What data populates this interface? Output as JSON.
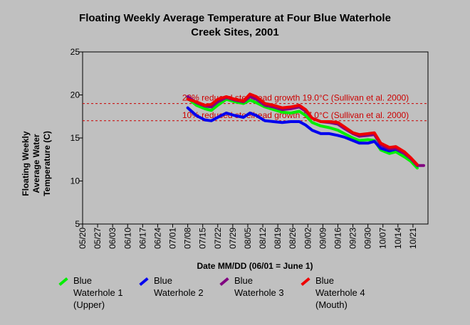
{
  "chart_data": {
    "type": "line",
    "title": "Floating Weekly Average Temperature at Four Blue Waterhole Creek Sites, 2001",
    "title_lines": [
      "Floating Weekly Average Temperature at Four Blue Waterhole",
      "Creek Sites, 2001"
    ],
    "xlabel": "Date MM/DD (06/01 = June 1)",
    "ylabel": "Floating Weekly Average Water Temperature (C)",
    "ylabel_lines": [
      "Floating Weekly",
      "Average Water",
      "Temperature (C)"
    ],
    "x_ticks": [
      "05/20",
      "05/27",
      "06/03",
      "06/10",
      "06/17",
      "06/24",
      "07/01",
      "07/08",
      "07/15",
      "07/22",
      "07/29",
      "08/05",
      "08/12",
      "08/19",
      "08/26",
      "09/02",
      "09/09",
      "09/16",
      "09/23",
      "09/30",
      "10/07",
      "10/14",
      "10/21"
    ],
    "xlim": [
      "05/20",
      "10/28"
    ],
    "y_ticks": [
      5,
      10,
      15,
      20,
      25
    ],
    "ylim": [
      5,
      25
    ],
    "grid": false,
    "thresholds": [
      {
        "label": "20% reduced steelhead growth 19.0°C (Sullivan et al. 2000)",
        "value": 19.0,
        "color": "#cc0000"
      },
      {
        "label": "10% reduced steelhead growth 17.0°C (Sullivan et al. 2000)",
        "value": 17.0,
        "color": "#cc0000"
      }
    ],
    "series": [
      {
        "name": "Blue Waterhole 1 (Upper)",
        "color": "#00ee00",
        "points": [
          [
            "07/08",
            19.6
          ],
          [
            "07/12",
            18.8
          ],
          [
            "07/16",
            18.4
          ],
          [
            "07/19",
            18.2
          ],
          [
            "07/22",
            18.8
          ],
          [
            "07/26",
            19.5
          ],
          [
            "07/30",
            19.2
          ],
          [
            "08/03",
            19.0
          ],
          [
            "08/06",
            19.4
          ],
          [
            "08/09",
            19.1
          ],
          [
            "08/13",
            18.6
          ],
          [
            "08/17",
            18.3
          ],
          [
            "08/21",
            18.0
          ],
          [
            "08/25",
            17.9
          ],
          [
            "08/29",
            18.1
          ],
          [
            "09/01",
            17.6
          ],
          [
            "09/04",
            16.8
          ],
          [
            "09/08",
            16.4
          ],
          [
            "09/12",
            16.2
          ],
          [
            "09/16",
            15.9
          ],
          [
            "09/19",
            15.5
          ],
          [
            "09/23",
            15.0
          ],
          [
            "09/26",
            14.7
          ],
          [
            "09/30",
            14.8
          ],
          [
            "10/03",
            14.7
          ],
          [
            "10/06",
            13.6
          ],
          [
            "10/10",
            13.2
          ],
          [
            "10/13",
            13.4
          ],
          [
            "10/17",
            12.8
          ],
          [
            "10/20",
            12.3
          ],
          [
            "10/23",
            11.5
          ]
        ]
      },
      {
        "name": "Blue Waterhole 2",
        "color": "#0000ee",
        "points": [
          [
            "07/08",
            18.5
          ],
          [
            "07/12",
            17.6
          ],
          [
            "07/16",
            17.1
          ],
          [
            "07/19",
            17.0
          ],
          [
            "07/22",
            17.4
          ],
          [
            "07/26",
            17.9
          ],
          [
            "07/30",
            17.6
          ],
          [
            "08/03",
            17.4
          ],
          [
            "08/06",
            17.9
          ],
          [
            "08/09",
            17.6
          ],
          [
            "08/13",
            17.0
          ],
          [
            "08/17",
            16.9
          ],
          [
            "08/21",
            16.8
          ],
          [
            "08/25",
            16.9
          ],
          [
            "08/29",
            16.9
          ],
          [
            "09/01",
            16.5
          ],
          [
            "09/04",
            15.9
          ],
          [
            "09/08",
            15.5
          ],
          [
            "09/12",
            15.5
          ],
          [
            "09/16",
            15.3
          ],
          [
            "09/19",
            15.1
          ],
          [
            "09/23",
            14.7
          ],
          [
            "09/26",
            14.4
          ],
          [
            "09/30",
            14.4
          ],
          [
            "10/03",
            14.6
          ],
          [
            "10/06",
            13.8
          ],
          [
            "10/10",
            13.5
          ],
          [
            "10/13",
            13.7
          ],
          [
            "10/17",
            13.2
          ],
          [
            "10/20",
            12.6
          ],
          [
            "10/23",
            11.8
          ]
        ]
      },
      {
        "name": "Blue Waterhole 3",
        "color": "#800080",
        "points": [
          [
            "07/08",
            19.8
          ],
          [
            "07/12",
            19.1
          ],
          [
            "07/16",
            18.7
          ],
          [
            "07/19",
            18.6
          ],
          [
            "07/22",
            19.2
          ],
          [
            "07/26",
            19.7
          ],
          [
            "07/30",
            19.4
          ],
          [
            "08/03",
            19.2
          ],
          [
            "08/06",
            19.8
          ],
          [
            "08/09",
            19.5
          ],
          [
            "08/13",
            18.8
          ],
          [
            "08/17",
            18.6
          ],
          [
            "08/21",
            18.3
          ],
          [
            "08/25",
            18.4
          ],
          [
            "08/29",
            18.6
          ],
          [
            "09/01",
            18.1
          ],
          [
            "09/04",
            17.3
          ],
          [
            "09/08",
            16.9
          ],
          [
            "09/12",
            16.8
          ],
          [
            "09/16",
            16.6
          ],
          [
            "09/19",
            16.1
          ],
          [
            "09/23",
            15.5
          ],
          [
            "09/26",
            15.2
          ],
          [
            "09/30",
            15.3
          ],
          [
            "10/03",
            15.4
          ],
          [
            "10/06",
            14.2
          ],
          [
            "10/10",
            13.7
          ],
          [
            "10/13",
            13.8
          ],
          [
            "10/17",
            13.2
          ],
          [
            "10/20",
            12.6
          ],
          [
            "10/23",
            11.8
          ],
          [
            "10/26",
            11.8
          ]
        ]
      },
      {
        "name": "Blue Waterhole 4 (Mouth)",
        "color": "#ee0000",
        "points": [
          [
            "07/08",
            19.5
          ],
          [
            "07/12",
            19.2
          ],
          [
            "07/16",
            18.8
          ],
          [
            "07/19",
            18.9
          ],
          [
            "07/22",
            19.5
          ],
          [
            "07/26",
            19.8
          ],
          [
            "07/30",
            19.5
          ],
          [
            "08/03",
            19.3
          ],
          [
            "08/06",
            20.1
          ],
          [
            "08/09",
            19.8
          ],
          [
            "08/13",
            19.0
          ],
          [
            "08/17",
            18.8
          ],
          [
            "08/21",
            18.5
          ],
          [
            "08/25",
            18.6
          ],
          [
            "08/29",
            18.8
          ],
          [
            "09/01",
            18.3
          ],
          [
            "09/04",
            17.3
          ],
          [
            "09/08",
            16.9
          ],
          [
            "09/12",
            16.9
          ],
          [
            "09/16",
            16.8
          ],
          [
            "09/19",
            16.3
          ],
          [
            "09/23",
            15.6
          ],
          [
            "09/26",
            15.4
          ],
          [
            "09/30",
            15.5
          ],
          [
            "10/03",
            15.6
          ],
          [
            "10/06",
            14.4
          ],
          [
            "10/10",
            13.9
          ],
          [
            "10/13",
            14.0
          ],
          [
            "10/17",
            13.4
          ],
          [
            "10/20",
            12.7
          ],
          [
            "10/23",
            11.9
          ]
        ]
      }
    ],
    "legend_placement": "bottom"
  },
  "legend": [
    {
      "label": "Blue\nWaterhole 1\n(Upper)",
      "color": "#00ee00"
    },
    {
      "label": "Blue\nWaterhole 2",
      "color": "#0000ee"
    },
    {
      "label": "Blue\nWaterhole 3",
      "color": "#800080"
    },
    {
      "label": "Blue\nWaterhole 4\n(Mouth)",
      "color": "#ee0000"
    }
  ]
}
